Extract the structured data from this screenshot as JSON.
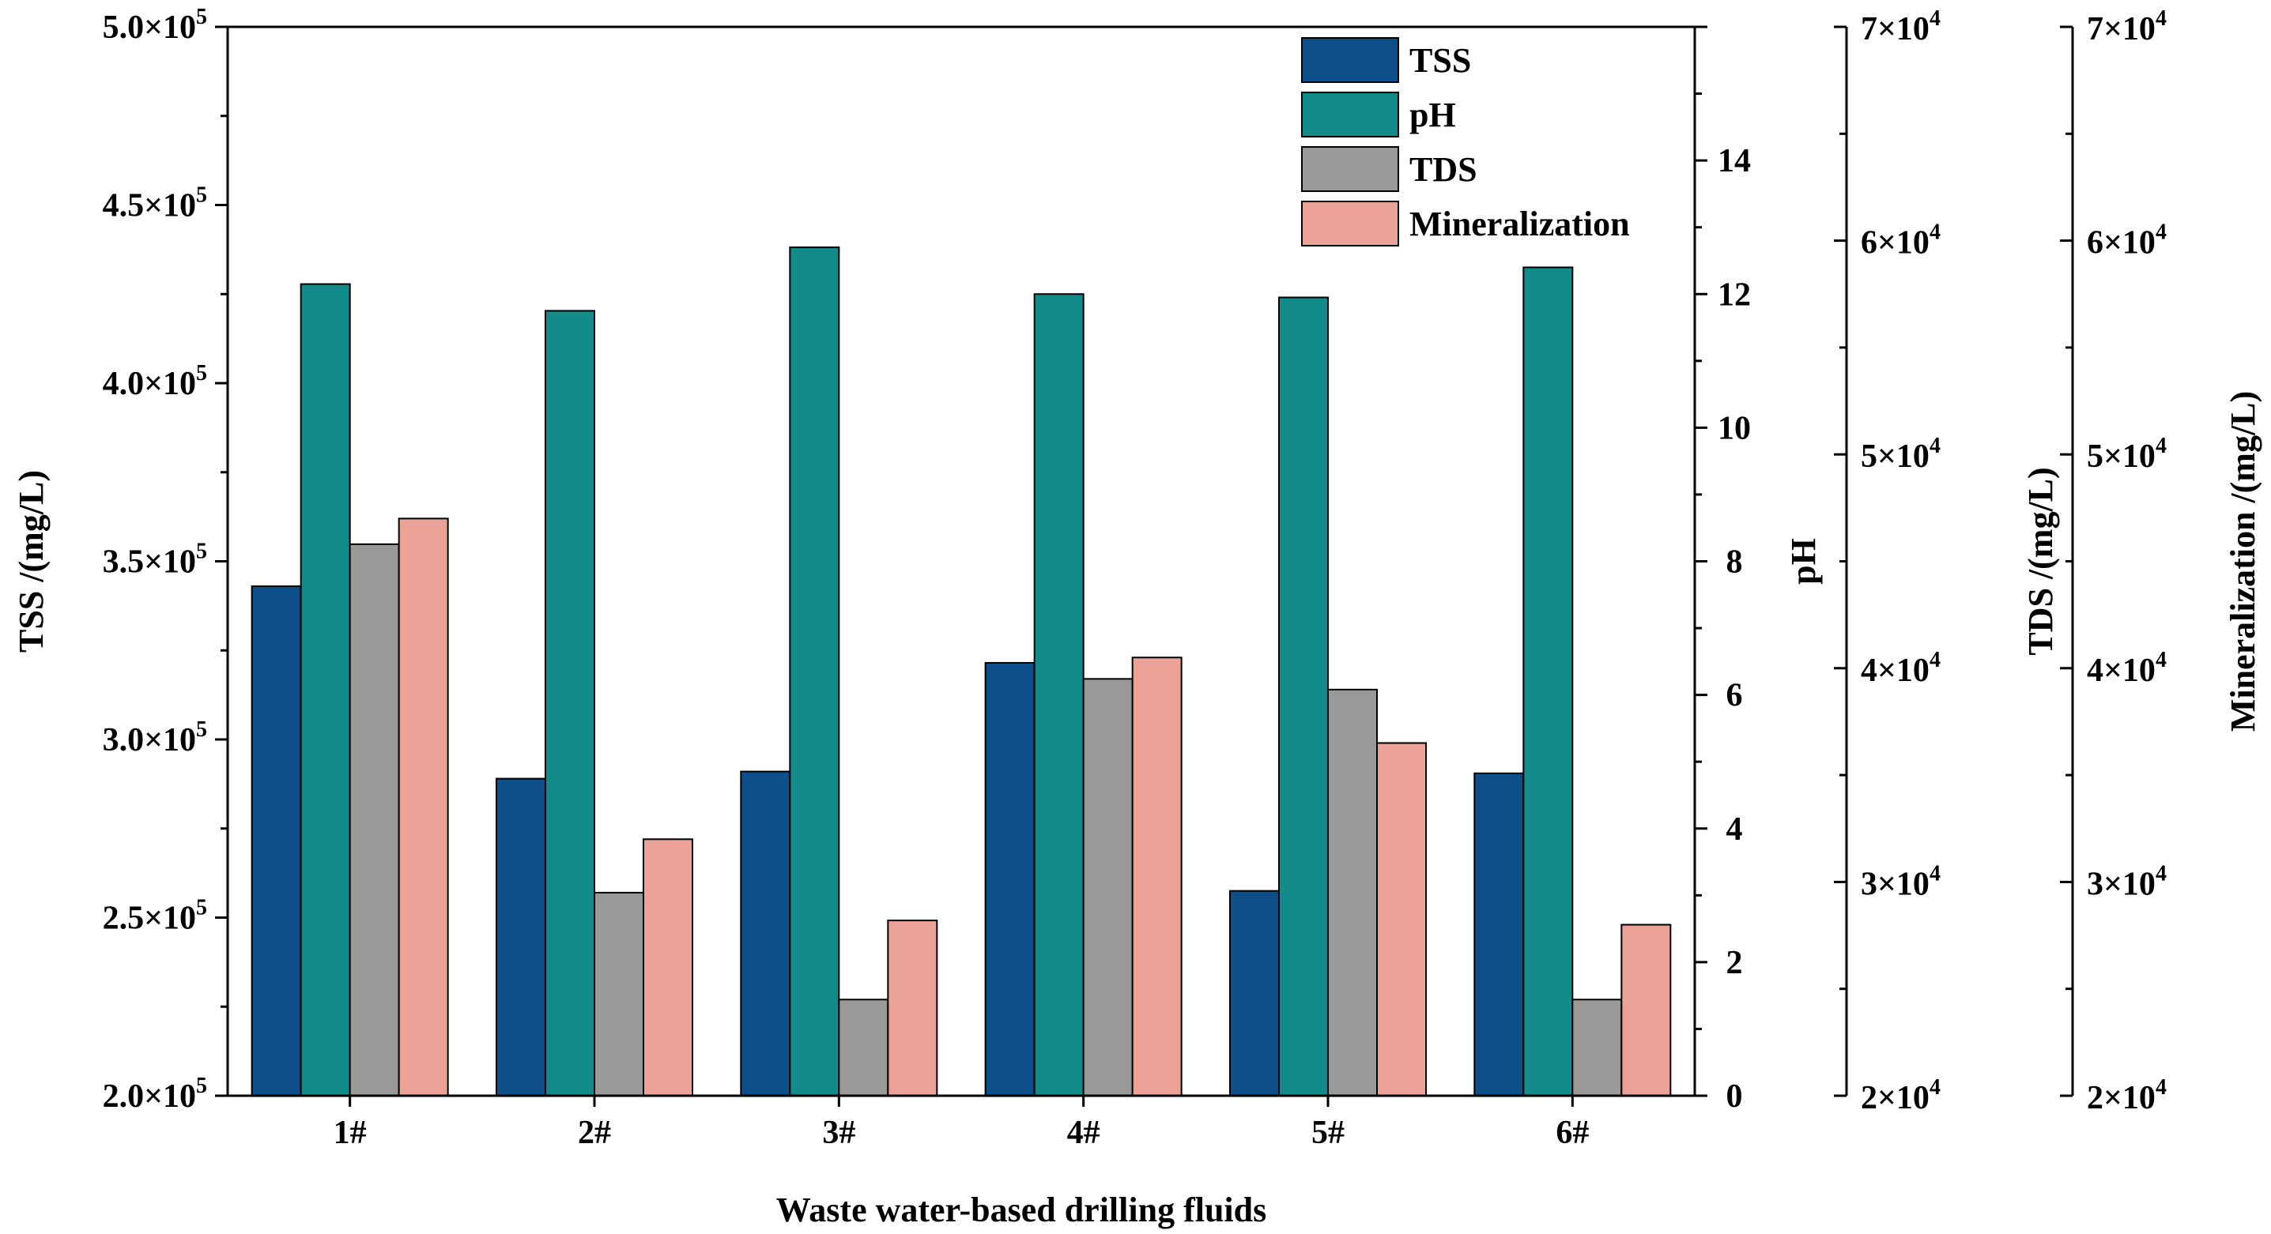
{
  "chart_data": {
    "type": "bar",
    "xlabel": "Waste water-based drilling fluids",
    "categories": [
      "1#",
      "2#",
      "3#",
      "4#",
      "5#",
      "6#"
    ],
    "series": [
      {
        "name": "TSS",
        "axis": "tss",
        "color": "#0d4f8b",
        "values": [
          343000,
          289000,
          291000,
          321500,
          257500,
          290500
        ]
      },
      {
        "name": "pH",
        "axis": "ph",
        "color": "#138b8b",
        "values": [
          12.15,
          11.75,
          12.7,
          12.0,
          11.95,
          12.4
        ]
      },
      {
        "name": "TDS",
        "axis": "tds",
        "color": "#999999",
        "values": [
          45800,
          29500,
          24500,
          39500,
          39000,
          24500
        ]
      },
      {
        "name": "Mineralization",
        "axis": "mineralization",
        "color": "#eba297",
        "values": [
          47000,
          32000,
          28200,
          40500,
          36500,
          28000
        ]
      }
    ],
    "axes": {
      "tss": {
        "label": "TSS /(mg/L)",
        "ylim": [
          200000,
          500000
        ],
        "ticks": [
          {
            "value": 200000,
            "mantissa": "2.0×10",
            "exp": "5"
          },
          {
            "value": 250000,
            "mantissa": "2.5×10",
            "exp": "5"
          },
          {
            "value": 300000,
            "mantissa": "3.0×10",
            "exp": "5"
          },
          {
            "value": 350000,
            "mantissa": "3.5×10",
            "exp": "5"
          },
          {
            "value": 400000,
            "mantissa": "4.0×10",
            "exp": "5"
          },
          {
            "value": 450000,
            "mantissa": "4.5×10",
            "exp": "5"
          },
          {
            "value": 500000,
            "mantissa": "5.0×10",
            "exp": "5"
          }
        ]
      },
      "ph": {
        "label": "pH",
        "ylim": [
          0,
          16
        ],
        "ticks": [
          {
            "value": 0,
            "text": "0"
          },
          {
            "value": 2,
            "text": "2"
          },
          {
            "value": 4,
            "text": "4"
          },
          {
            "value": 6,
            "text": "6"
          },
          {
            "value": 8,
            "text": "8"
          },
          {
            "value": 10,
            "text": "10"
          },
          {
            "value": 12,
            "text": "12"
          },
          {
            "value": 14,
            "text": "14"
          }
        ]
      },
      "tds": {
        "label": "TDS /(mg/L)",
        "ylim": [
          20000,
          70000
        ],
        "ticks": [
          {
            "value": 20000,
            "mantissa": "2×10",
            "exp": "4"
          },
          {
            "value": 30000,
            "mantissa": "3×10",
            "exp": "4"
          },
          {
            "value": 40000,
            "mantissa": "4×10",
            "exp": "4"
          },
          {
            "value": 50000,
            "mantissa": "5×10",
            "exp": "4"
          },
          {
            "value": 60000,
            "mantissa": "6×10",
            "exp": "4"
          },
          {
            "value": 70000,
            "mantissa": "7×10",
            "exp": "4"
          }
        ]
      },
      "mineralization": {
        "label": "Mineralization /(mg/L)",
        "ylim": [
          20000,
          70000
        ],
        "ticks": [
          {
            "value": 20000,
            "mantissa": "2×10",
            "exp": "4"
          },
          {
            "value": 30000,
            "mantissa": "3×10",
            "exp": "4"
          },
          {
            "value": 40000,
            "mantissa": "4×10",
            "exp": "4"
          },
          {
            "value": 50000,
            "mantissa": "5×10",
            "exp": "4"
          },
          {
            "value": 60000,
            "mantissa": "6×10",
            "exp": "4"
          },
          {
            "value": 70000,
            "mantissa": "7×10",
            "exp": "4"
          }
        ]
      }
    },
    "legend": {
      "position": "top-right",
      "entries": [
        "TSS",
        "pH",
        "TDS",
        "Mineralization"
      ]
    }
  }
}
